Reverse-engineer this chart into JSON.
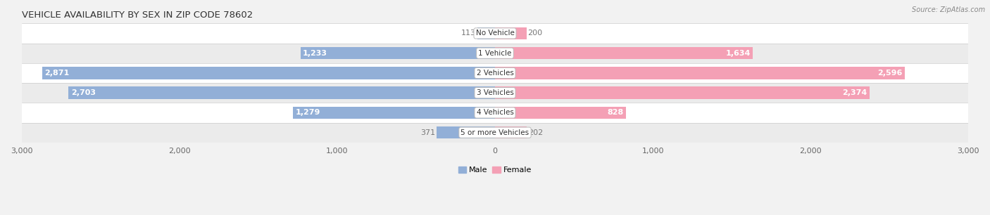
{
  "title": "VEHICLE AVAILABILITY BY SEX IN ZIP CODE 78602",
  "source": "Source: ZipAtlas.com",
  "categories": [
    "No Vehicle",
    "1 Vehicle",
    "2 Vehicles",
    "3 Vehicles",
    "4 Vehicles",
    "5 or more Vehicles"
  ],
  "male_values": [
    113,
    1233,
    2871,
    2703,
    1279,
    371
  ],
  "female_values": [
    200,
    1634,
    2596,
    2374,
    828,
    202
  ],
  "male_color": "#92afd7",
  "female_color": "#f4a0b5",
  "male_label_color_inside": "white",
  "female_label_color_inside": "white",
  "male_label_color_outside": "#777777",
  "female_label_color_outside": "#777777",
  "male_label": "Male",
  "female_label": "Female",
  "xlim": 3000,
  "bar_height": 0.62,
  "background_color": "#f2f2f2",
  "row_colors": [
    "#ffffff",
    "#ebebeb"
  ],
  "title_fontsize": 9.5,
  "value_fontsize": 8,
  "cat_fontsize": 7.5,
  "tick_fontsize": 8,
  "source_fontsize": 7,
  "inside_threshold": 400
}
